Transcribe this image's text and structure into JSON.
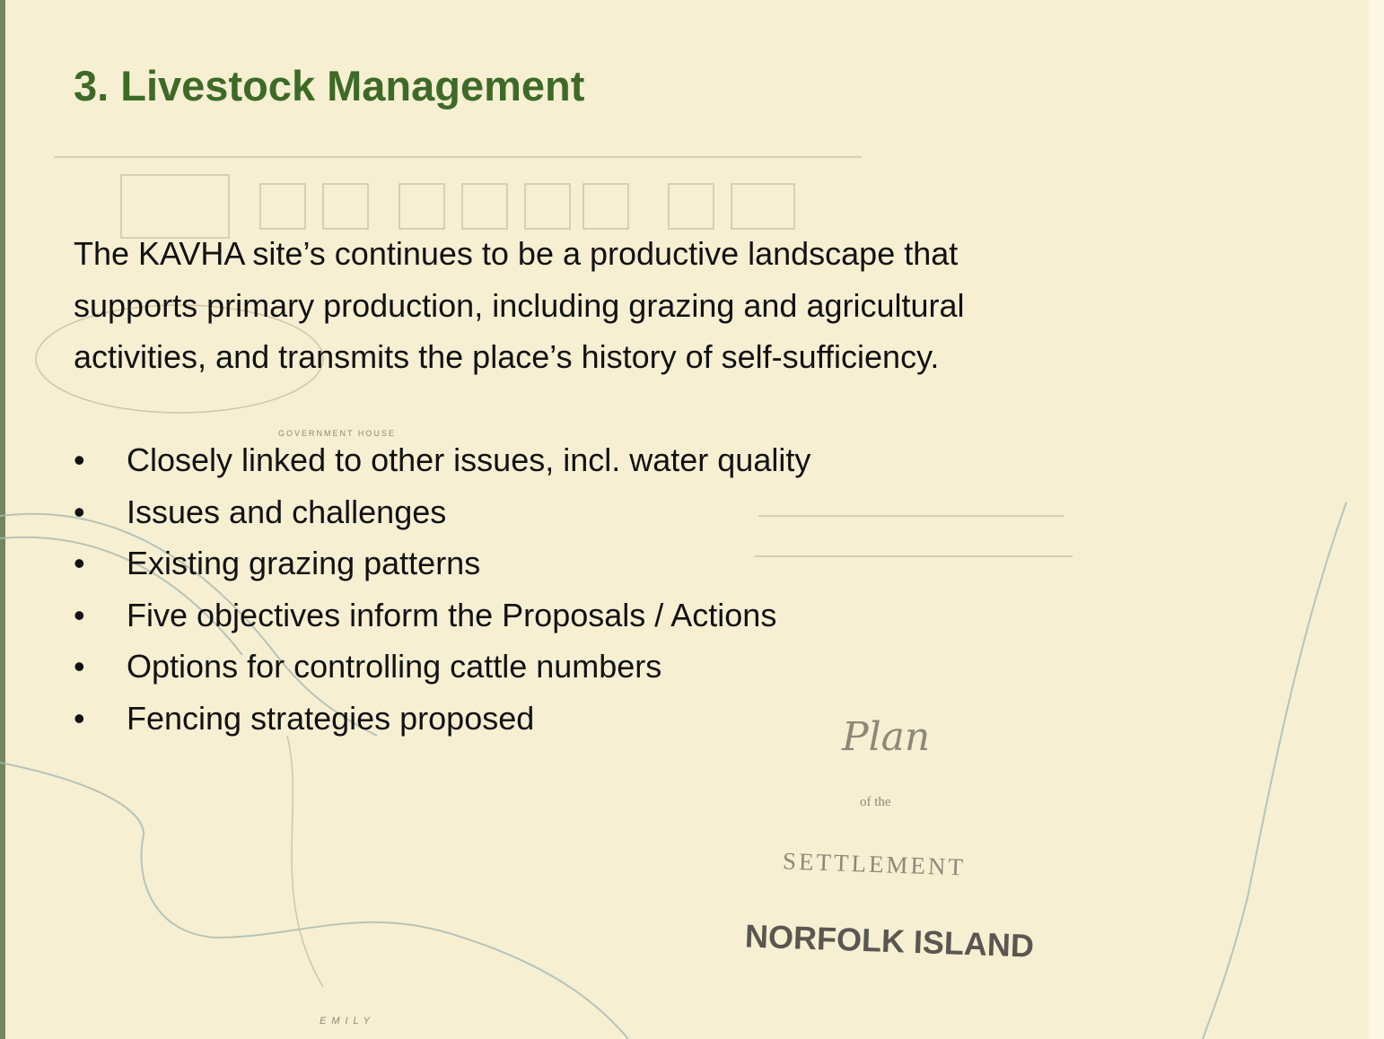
{
  "slide": {
    "title": "3. Livestock Management",
    "paragraph": {
      "lines": [
        "The KAVHA site’s continues to be a productive landscape that",
        "supports primary production, including grazing and agricultural",
        "activities, and transmits the place’s history of self-sufficiency."
      ]
    },
    "bullets": [
      "Closely linked to other issues, incl. water quality",
      "Issues and challenges",
      "Existing grazing patterns",
      "Five objectives inform the Proposals / Actions",
      "Options for controlling cattle numbers",
      "Fencing strategies proposed"
    ],
    "map": {
      "plan": "Plan",
      "of_the": "of the",
      "settlement": "SETTLEMENT",
      "island": "NORFOLK ISLAND",
      "government_house": "GOVERNMENT HOUSE",
      "emily": "EMILY"
    }
  }
}
